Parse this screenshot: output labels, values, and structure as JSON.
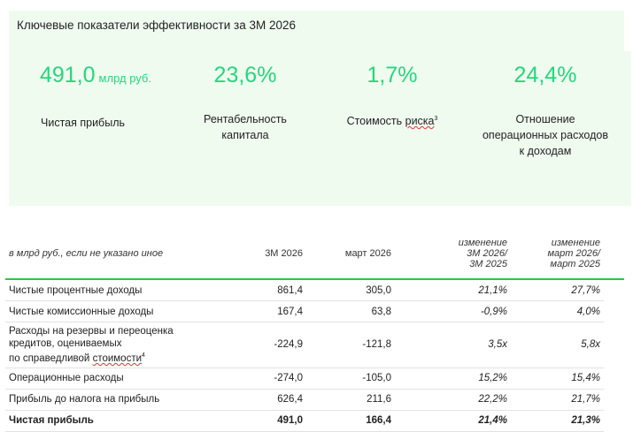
{
  "panel": {
    "title": "Ключевые показатели эффективности за 3М 2026",
    "kpis": [
      {
        "value": "491,0",
        "unit": "млрд руб.",
        "label": "Чистая прибыль"
      },
      {
        "value": "23,6%",
        "label_line1": "Рентабельность",
        "label_line2": "капитала"
      },
      {
        "value": "1,7%",
        "label_main": "Стоимость ",
        "label_underlined": "риска",
        "label_sup": "3"
      },
      {
        "value": "24,4%",
        "label_line1": "Отношение",
        "label_line2": "операционных расходов",
        "label_line3": "к доходам"
      }
    ],
    "accent": "#21d97a"
  },
  "table": {
    "headers": {
      "label": "в млрд руб., если не указано иное",
      "col1": "3М 2026",
      "col2": "март 2026",
      "col3_l1": "изменение",
      "col3_l2": "3М 2026/",
      "col3_l3": "3М 2025",
      "col4_l1": "изменение",
      "col4_l2": "март 2026/",
      "col4_l3": "март 2025"
    },
    "rows": [
      {
        "label": "Чистые процентные доходы",
        "v1": "861,4",
        "v2": "305,0",
        "c1": "21,1%",
        "c2": "27,7%"
      },
      {
        "label": "Чистые комиссионные доходы",
        "v1": "167,4",
        "v2": "63,8",
        "c1": "-0,9%",
        "c2": "4,0%"
      },
      {
        "label_l1": "Расходы на резервы и переоценка",
        "label_l2": "кредитов, оцениваемых",
        "label_l3": "по справедливой ",
        "label_underlined": "стоимости",
        "label_sup": "4",
        "v1": "-224,9",
        "v2": "-121,8",
        "c1": "3,5x",
        "c2": "5,8x"
      },
      {
        "label": "Операционные расходы",
        "v1": "-274,0",
        "v2": "-105,0",
        "c1": "15,2%",
        "c2": "15,4%"
      },
      {
        "label": "Прибыль до налога на прибыль",
        "v1": "626,4",
        "v2": "211,6",
        "c1": "22,2%",
        "c2": "21,7%"
      },
      {
        "label": "Чистая прибыль",
        "v1": "491,0",
        "v2": "166,4",
        "c1": "21,4%",
        "c2": "21,3%"
      }
    ]
  }
}
